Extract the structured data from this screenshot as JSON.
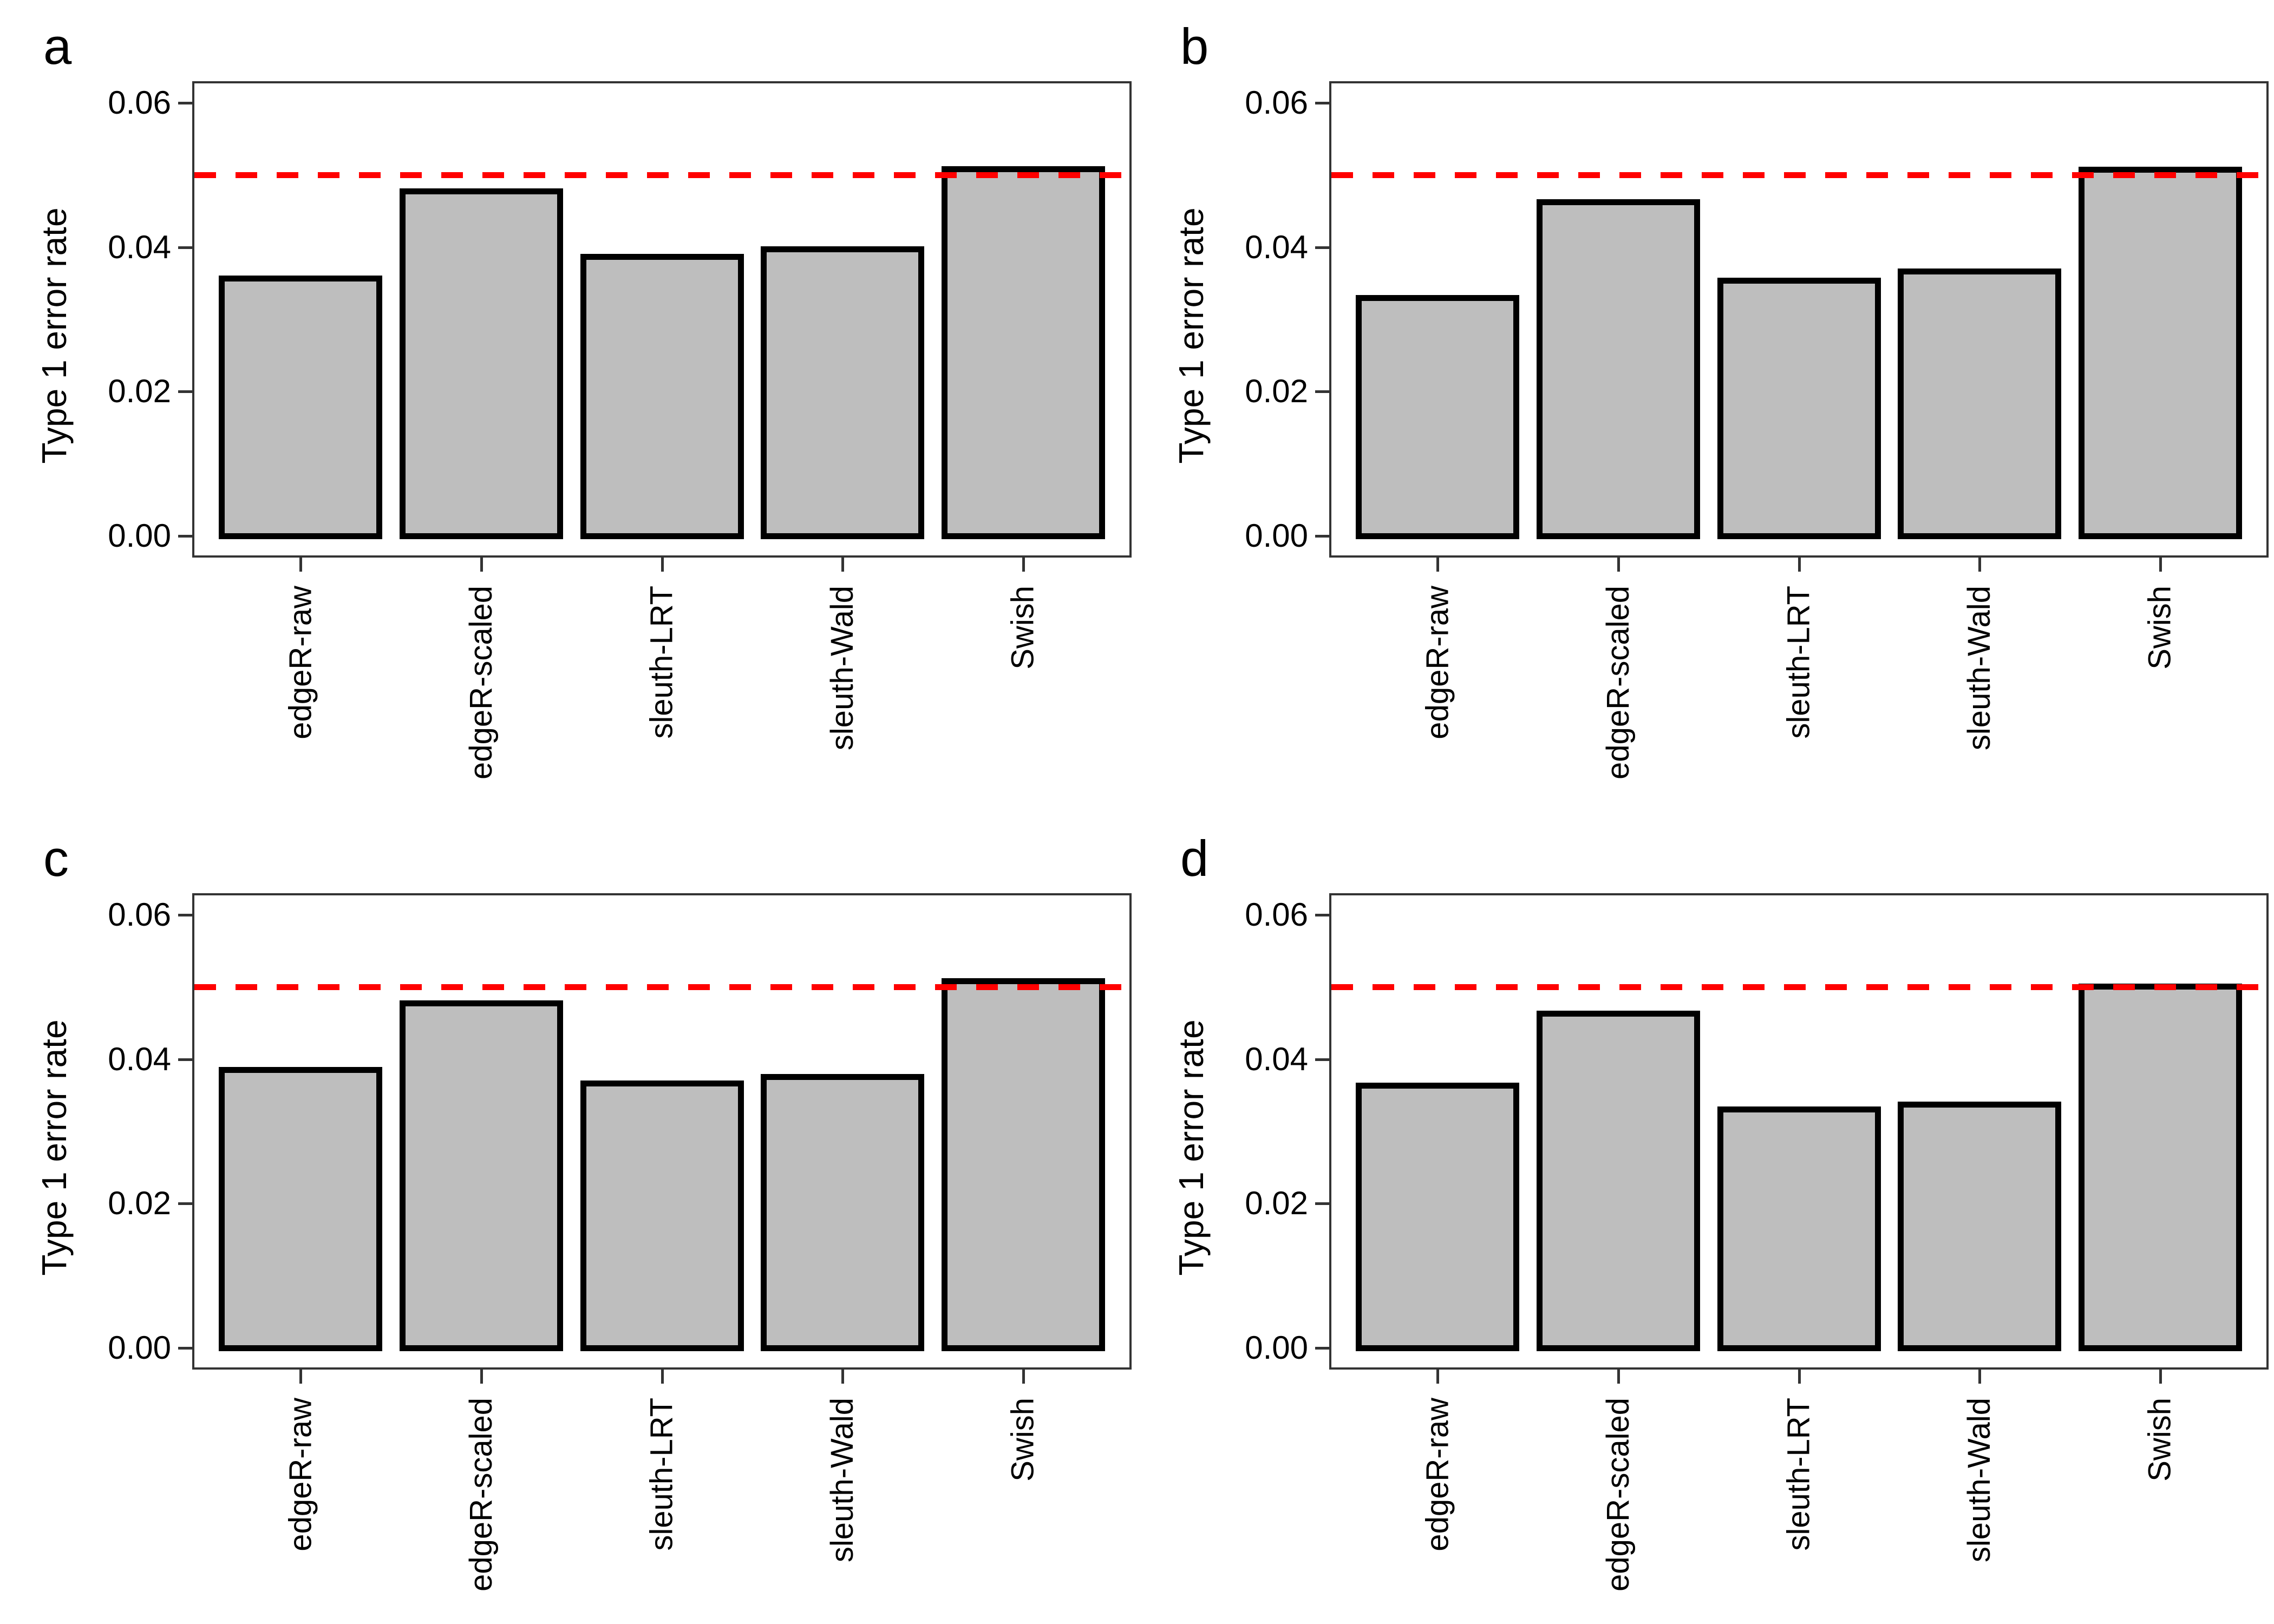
{
  "figure": {
    "layout": "2x2 panel grid",
    "background": "#ffffff"
  },
  "colors": {
    "bar_fill": "#bebebe",
    "bar_border": "#000000",
    "axis": "#333333",
    "threshold_line": "#ff0000",
    "text": "#000000"
  },
  "chart_data": [
    {
      "type": "bar",
      "panel_label": "a",
      "ylabel": "Type 1 error rate",
      "categories": [
        "edgeR-raw",
        "edgeR-scaled",
        "sleuth-LRT",
        "sleuth-Wald",
        "Swish"
      ],
      "values": [
        0.0356,
        0.0477,
        0.0386,
        0.0397,
        0.0508
      ],
      "ylim": [
        0,
        0.06
      ],
      "yticks": [
        {
          "value": 0.0,
          "label": "0.00"
        },
        {
          "value": 0.02,
          "label": "0.02"
        },
        {
          "value": 0.04,
          "label": "0.04"
        },
        {
          "value": 0.06,
          "label": "0.06"
        }
      ],
      "reference_line": {
        "value": 0.05,
        "color": "#ff0000",
        "style": "dashed"
      },
      "bar_fill": "#bebebe",
      "bar_border": "#000000",
      "grid": false,
      "legend": "none",
      "x_label_rotation": 90
    },
    {
      "type": "bar",
      "panel_label": "b",
      "ylabel": "Type 1 error rate",
      "categories": [
        "edgeR-raw",
        "edgeR-scaled",
        "sleuth-LRT",
        "sleuth-Wald",
        "Swish"
      ],
      "values": [
        0.0329,
        0.0462,
        0.0353,
        0.0366,
        0.0507
      ],
      "ylim": [
        0,
        0.06
      ],
      "yticks": [
        {
          "value": 0.0,
          "label": "0.00"
        },
        {
          "value": 0.02,
          "label": "0.02"
        },
        {
          "value": 0.04,
          "label": "0.04"
        },
        {
          "value": 0.06,
          "label": "0.06"
        }
      ],
      "reference_line": {
        "value": 0.05,
        "color": "#ff0000",
        "style": "dashed"
      },
      "bar_fill": "#bebebe",
      "bar_border": "#000000",
      "grid": false,
      "legend": "none",
      "x_label_rotation": 90
    },
    {
      "type": "bar",
      "panel_label": "c",
      "ylabel": "Type 1 error rate",
      "categories": [
        "edgeR-raw",
        "edgeR-scaled",
        "sleuth-LRT",
        "sleuth-Wald",
        "Swish"
      ],
      "values": [
        0.0385,
        0.0477,
        0.0366,
        0.0375,
        0.0508
      ],
      "ylim": [
        0,
        0.06
      ],
      "yticks": [
        {
          "value": 0.0,
          "label": "0.00"
        },
        {
          "value": 0.02,
          "label": "0.02"
        },
        {
          "value": 0.04,
          "label": "0.04"
        },
        {
          "value": 0.06,
          "label": "0.06"
        }
      ],
      "reference_line": {
        "value": 0.05,
        "color": "#ff0000",
        "style": "dashed"
      },
      "bar_fill": "#bebebe",
      "bar_border": "#000000",
      "grid": false,
      "legend": "none",
      "x_label_rotation": 90
    },
    {
      "type": "bar",
      "panel_label": "d",
      "ylabel": "Type 1 error rate",
      "categories": [
        "edgeR-raw",
        "edgeR-scaled",
        "sleuth-LRT",
        "sleuth-Wald",
        "Swish"
      ],
      "values": [
        0.0363,
        0.0463,
        0.033,
        0.0337,
        0.05
      ],
      "ylim": [
        0,
        0.06
      ],
      "yticks": [
        {
          "value": 0.0,
          "label": "0.00"
        },
        {
          "value": 0.02,
          "label": "0.02"
        },
        {
          "value": 0.04,
          "label": "0.04"
        },
        {
          "value": 0.06,
          "label": "0.06"
        }
      ],
      "reference_line": {
        "value": 0.05,
        "color": "#ff0000",
        "style": "dashed"
      },
      "bar_fill": "#bebebe",
      "bar_border": "#000000",
      "grid": false,
      "legend": "none",
      "x_label_rotation": 90
    }
  ]
}
